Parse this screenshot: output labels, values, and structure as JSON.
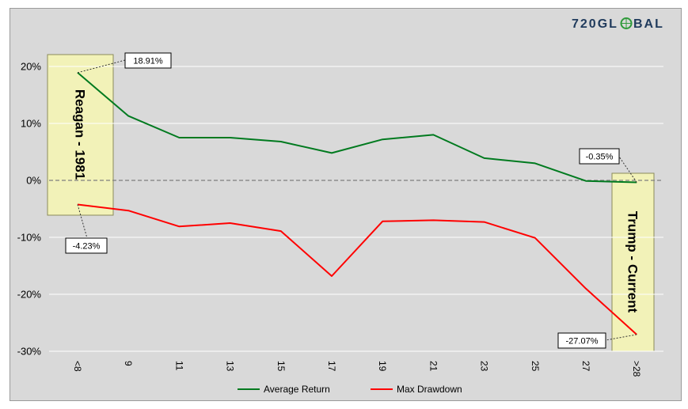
{
  "logo": {
    "text_left": "720GL",
    "text_right": "BAL"
  },
  "chart_data": {
    "type": "line",
    "categories": [
      "<8",
      "9",
      "11",
      "13",
      "15",
      "17",
      "19",
      "21",
      "23",
      "25",
      "27",
      ">28"
    ],
    "ylim": [
      -30,
      20
    ],
    "yticks": [
      20,
      10,
      0,
      -10,
      -20,
      -30
    ],
    "ytick_labels": [
      "20%",
      "10%",
      "0%",
      "-10%",
      "-20%",
      "-30%"
    ],
    "grid": true,
    "legend_position": "bottom",
    "series": [
      {
        "name": "Average Return",
        "color": "#007a1f",
        "values": [
          18.91,
          11.3,
          7.5,
          7.5,
          6.8,
          4.8,
          7.2,
          8.0,
          3.9,
          3.0,
          -0.1,
          -0.35
        ]
      },
      {
        "name": "Max Drawdown",
        "color": "#ff0000",
        "values": [
          -4.23,
          -5.3,
          -8.1,
          -7.5,
          -8.9,
          -16.8,
          -7.2,
          -7.0,
          -7.3,
          -10.1,
          -19.0,
          -27.07
        ]
      }
    ],
    "annotations": [
      {
        "label": "18.91%",
        "series": 0,
        "index": 0
      },
      {
        "label": "-4.23%",
        "series": 1,
        "index": 0
      },
      {
        "label": "-0.35%",
        "series": 0,
        "index": 11
      },
      {
        "label": "-27.07%",
        "series": 1,
        "index": 11
      }
    ],
    "highlights": [
      {
        "label": "Reagan - 1981",
        "color": "#f2f2b8"
      },
      {
        "label": "Trump - Current",
        "color": "#f2f2b8"
      }
    ]
  }
}
